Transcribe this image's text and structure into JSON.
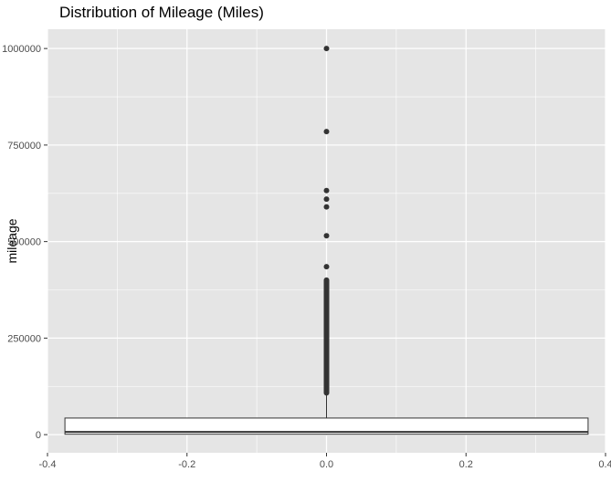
{
  "chart_data": {
    "type": "boxplot",
    "title": "Distribution of Mileage (Miles)",
    "xlabel": "",
    "ylabel": "mileage",
    "xlim": [
      -0.4,
      0.4
    ],
    "ylim": [
      -47000,
      1050000
    ],
    "x_ticks": [
      -0.4,
      -0.2,
      0.0,
      0.2,
      0.4
    ],
    "x_tick_labels": [
      "-0.4",
      "-0.2",
      "0.0",
      "0.2",
      "0.4"
    ],
    "y_ticks": [
      0,
      250000,
      500000,
      750000,
      1000000
    ],
    "y_tick_labels": [
      "0",
      "250000",
      "500000",
      "750000",
      "1000000"
    ],
    "grid": true,
    "box": {
      "x_center": 0.0,
      "x_min": -0.375,
      "x_max": 0.375,
      "q1": 1000,
      "median": 7000,
      "q3": 43000,
      "whisker_low": 0,
      "whisker_high": 108000
    },
    "outlier_band": [
      108000,
      400000
    ],
    "outliers": [
      1000000,
      785000,
      632000,
      610000,
      590000,
      515000,
      435000
    ],
    "colors": {
      "panel": "#e5e5e5",
      "grid_major": "#ffffff",
      "box_fill": "#ffffff",
      "line": "#333333",
      "point": "#333333"
    }
  }
}
